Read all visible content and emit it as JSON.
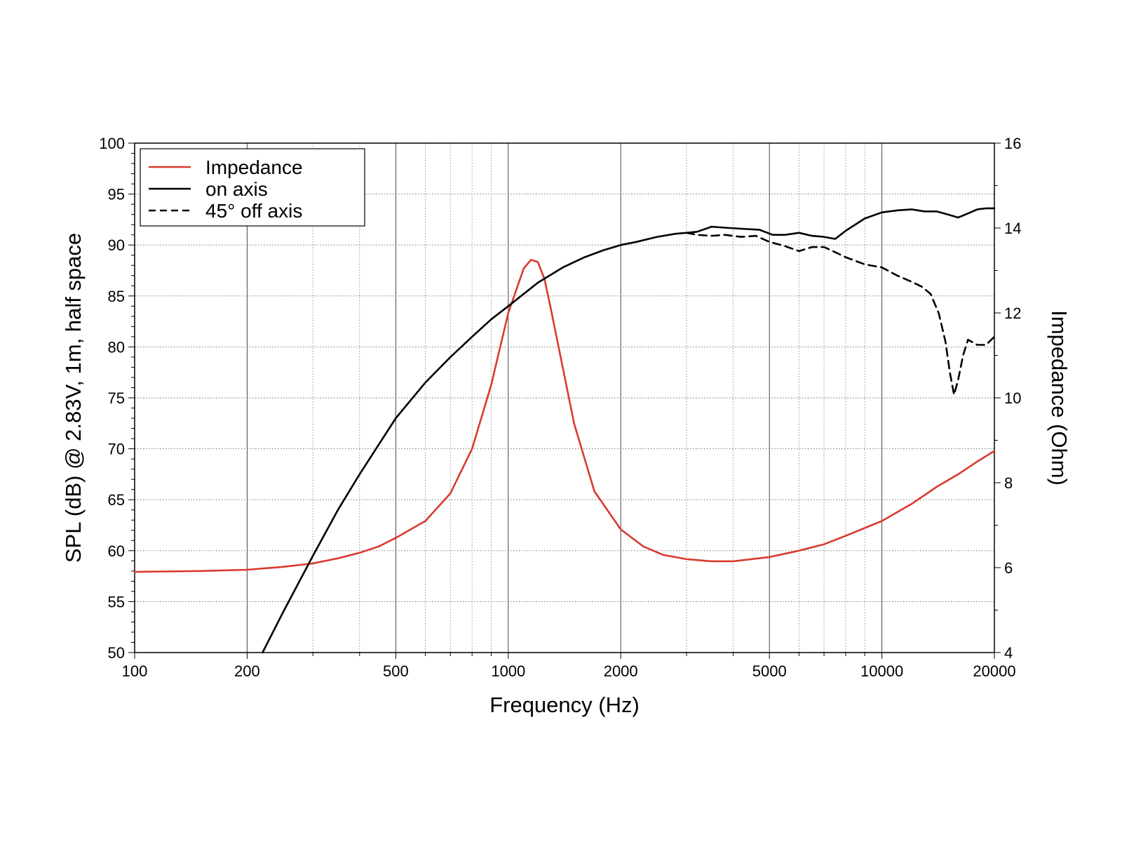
{
  "chart_data": {
    "type": "line",
    "title": "",
    "xlabel": "Frequency (Hz)",
    "ylabel_left": "SPL (dB) @ 2.83V, 1m, half space",
    "ylabel_right": "Impedance (Ohm)",
    "x_scale": "log",
    "xlim": [
      100,
      20000
    ],
    "ylim_left": [
      50,
      100
    ],
    "ylim_right": [
      4,
      16
    ],
    "x_ticks": [
      100,
      200,
      500,
      1000,
      2000,
      5000,
      10000,
      20000
    ],
    "x_tick_labels": [
      "100",
      "200",
      "500",
      "1000",
      "2000",
      "5000",
      "10000",
      "20000"
    ],
    "y_ticks_left": [
      50,
      55,
      60,
      65,
      70,
      75,
      80,
      85,
      90,
      95,
      100
    ],
    "y_tick_labels_left": [
      "50",
      "55",
      "60",
      "65",
      "70",
      "75",
      "80",
      "85",
      "90",
      "95",
      "100"
    ],
    "y_ticks_right": [
      4,
      6,
      8,
      10,
      12,
      14,
      16
    ],
    "y_tick_labels_right": [
      "4",
      "6",
      "8",
      "10",
      "12",
      "14",
      "16"
    ],
    "grid": true,
    "legend": {
      "position": "top-left"
    },
    "colors": {
      "impedance": "#d93a2e",
      "on_axis": "#000000",
      "off_axis": "#000000"
    },
    "series": [
      {
        "name": "Impedance",
        "axis": "right",
        "style": "solid",
        "x": [
          100,
          150,
          200,
          250,
          300,
          350,
          400,
          450,
          500,
          600,
          700,
          800,
          900,
          1000,
          1100,
          1150,
          1200,
          1250,
          1300,
          1400,
          1500,
          1700,
          2000,
          2300,
          2600,
          3000,
          3500,
          4000,
          5000,
          6000,
          7000,
          8000,
          10000,
          12000,
          14000,
          16000,
          18000,
          20000
        ],
        "y": [
          5.9,
          5.92,
          5.95,
          6.02,
          6.1,
          6.22,
          6.35,
          6.5,
          6.7,
          7.1,
          7.75,
          8.8,
          10.3,
          12.0,
          13.05,
          13.25,
          13.2,
          12.8,
          12.1,
          10.7,
          9.4,
          7.8,
          6.9,
          6.5,
          6.3,
          6.2,
          6.15,
          6.15,
          6.25,
          6.4,
          6.55,
          6.75,
          7.1,
          7.5,
          7.9,
          8.2,
          8.5,
          8.75
        ]
      },
      {
        "name": "on axis",
        "axis": "left",
        "style": "solid",
        "x": [
          220,
          250,
          300,
          350,
          400,
          500,
          600,
          700,
          800,
          900,
          1000,
          1200,
          1400,
          1600,
          1800,
          2000,
          2200,
          2500,
          2800,
          3000,
          3200,
          3500,
          3800,
          4200,
          4700,
          5100,
          5500,
          6000,
          6500,
          7000,
          7500,
          8000,
          9000,
          10000,
          11000,
          12000,
          13000,
          14000,
          15000,
          16000,
          17000,
          18000,
          19000,
          20000
        ],
        "y": [
          50,
          54,
          59.5,
          64,
          67.5,
          73,
          76.5,
          79,
          81,
          82.7,
          84,
          86.3,
          87.8,
          88.8,
          89.5,
          90.0,
          90.3,
          90.8,
          91.1,
          91.2,
          91.3,
          91.8,
          91.7,
          91.6,
          91.5,
          91.0,
          91.0,
          91.2,
          90.9,
          90.8,
          90.6,
          91.4,
          92.6,
          93.2,
          93.4,
          93.5,
          93.3,
          93.3,
          93.0,
          92.7,
          93.1,
          93.5,
          93.6,
          93.6
        ]
      },
      {
        "name": "45° off axis",
        "axis": "left",
        "style": "dashed",
        "x": [
          3000,
          3200,
          3500,
          3800,
          4200,
          4600,
          5000,
          5500,
          6000,
          6500,
          7000,
          7500,
          8000,
          9000,
          10000,
          11000,
          12000,
          12800,
          13500,
          14200,
          14800,
          15200,
          15600,
          16000,
          16500,
          17000,
          18000,
          19000,
          20000
        ],
        "y": [
          91.2,
          91.0,
          90.9,
          91.0,
          90.8,
          90.9,
          90.3,
          89.9,
          89.4,
          89.8,
          89.8,
          89.3,
          88.8,
          88.1,
          87.8,
          87.0,
          86.4,
          85.9,
          85.2,
          83.3,
          80.5,
          77.5,
          75.3,
          76.8,
          79.2,
          80.7,
          80.2,
          80.2,
          81.0
        ]
      }
    ]
  }
}
